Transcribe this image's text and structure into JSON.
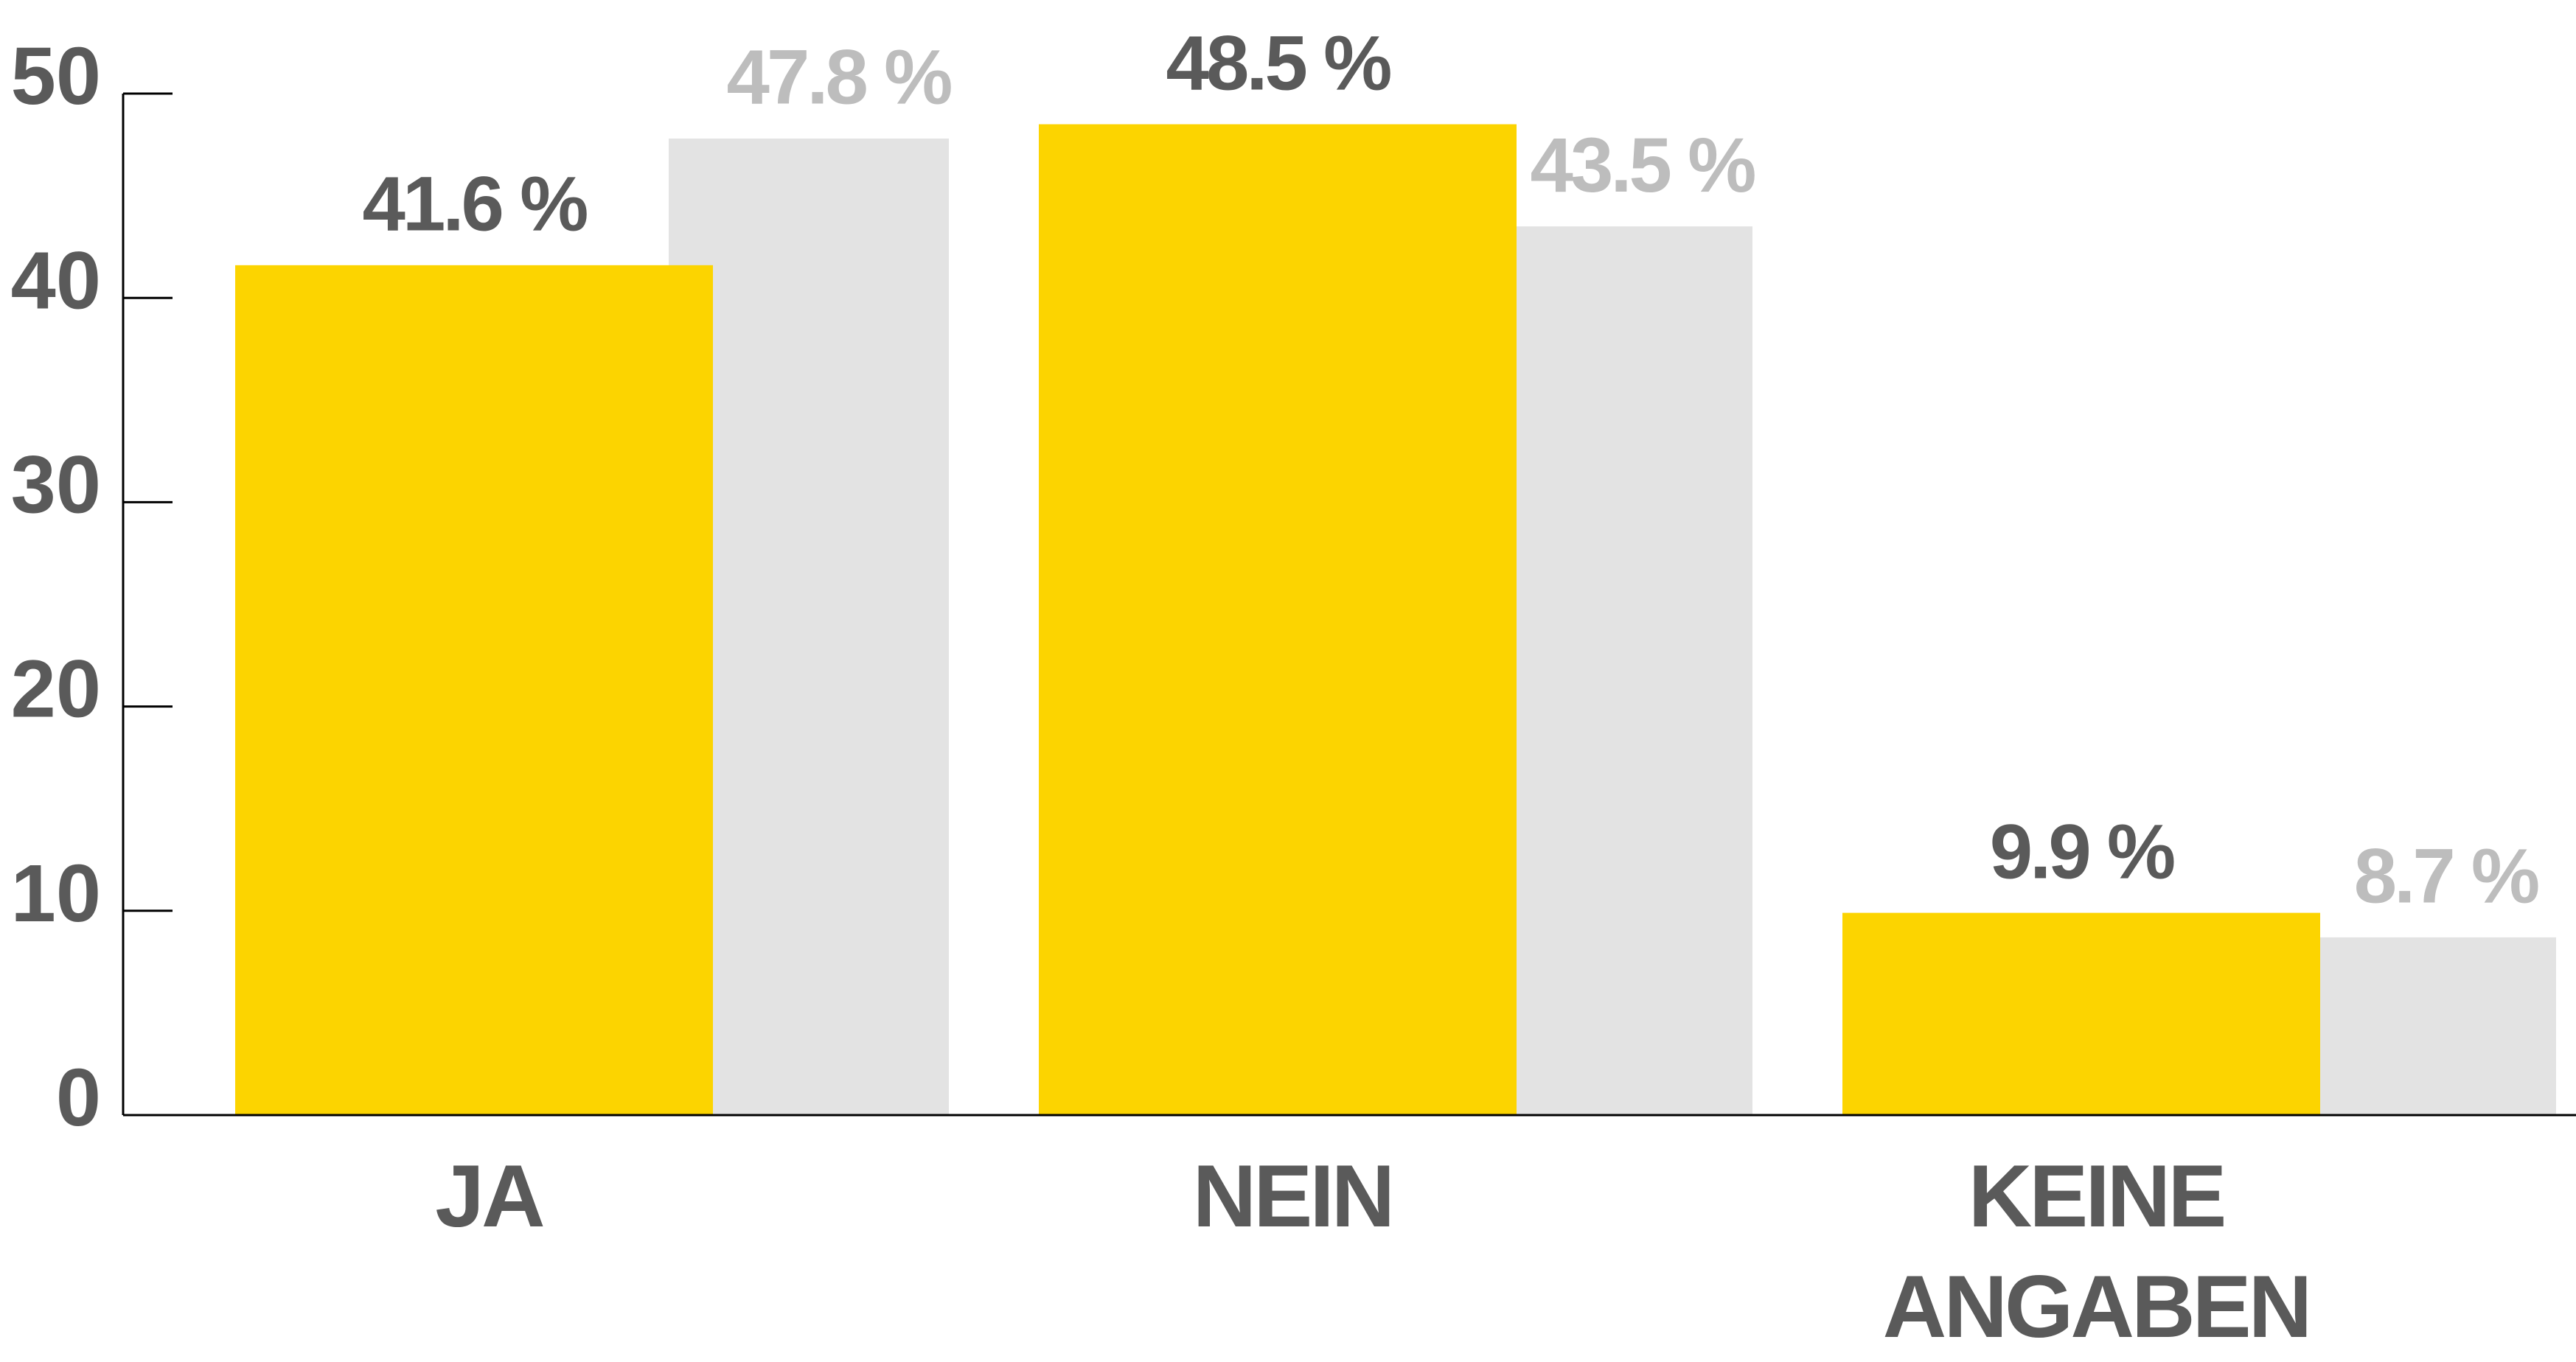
{
  "chart_data": {
    "type": "bar",
    "categories": [
      "JA",
      "NEIN",
      "KEINE ANGABEN"
    ],
    "series": [
      {
        "color": "#fcd400",
        "label_color": "#5a5a5a",
        "values": [
          41.6,
          48.5,
          9.9
        ],
        "value_labels": [
          "41.6 %",
          "48.5 %",
          "9.9 %"
        ]
      },
      {
        "color": "#e3e3e3",
        "label_color": "#bdbdbd",
        "values": [
          47.8,
          43.5,
          8.7
        ],
        "value_labels": [
          "47.8 %",
          "43.5 %",
          "8.7 %"
        ]
      }
    ],
    "ylim": [
      0,
      50
    ],
    "yticks": [
      0,
      10,
      20,
      30,
      40,
      50
    ],
    "grid": false
  }
}
